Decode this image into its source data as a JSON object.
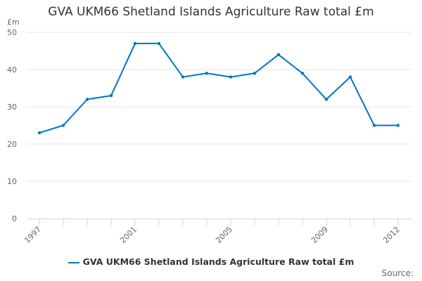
{
  "chart_data": {
    "type": "line",
    "title": "GVA UKM66 Shetland Islands Agriculture Raw total £m",
    "ylabel": "£m",
    "xlabel": "",
    "x": [
      1997,
      1998,
      1999,
      2000,
      2001,
      2002,
      2003,
      2004,
      2005,
      2006,
      2007,
      2008,
      2009,
      2010,
      2011,
      2012
    ],
    "x_tick_labels": [
      "1997",
      "2001",
      "2005",
      "2009",
      "2012"
    ],
    "y_ticks": [
      0,
      10,
      20,
      30,
      40,
      50
    ],
    "ylim": [
      0,
      50
    ],
    "grid": true,
    "legend_position": "bottom",
    "series": [
      {
        "name": "GVA UKM66 Shetland Islands Agriculture Raw total £m",
        "color": "#0077c0",
        "values": [
          23,
          25,
          32,
          33,
          47,
          47,
          38,
          39,
          38,
          39,
          44,
          39,
          32,
          38,
          25,
          25
        ]
      }
    ]
  },
  "source_label": "Source:"
}
